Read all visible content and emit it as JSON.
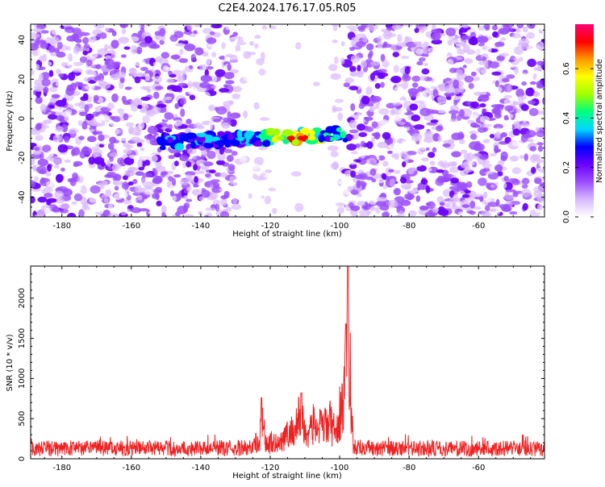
{
  "title": "C2E4.2024.176.17.05.R05",
  "chart_data": [
    {
      "type": "heatmap",
      "xlabel": "Height of straight line (km)",
      "ylabel": "Frequency (Hz)",
      "xlim": [
        -189,
        -41
      ],
      "ylim": [
        -50,
        48
      ],
      "xticks": [
        -180,
        -160,
        -140,
        -120,
        -100,
        -80,
        -60
      ],
      "yticks": [
        -40,
        -20,
        0,
        20,
        40
      ],
      "colorbar": {
        "label": "Normalized spectral amplitude",
        "range": [
          0.0,
          0.78
        ],
        "ticks": [
          0.0,
          0.2,
          0.4,
          0.6
        ],
        "colormap": [
          "#ffffff",
          "#d9b8ff",
          "#9b4dff",
          "#6a00ff",
          "#0000ff",
          "#00d8ff",
          "#00ff80",
          "#a0ff00",
          "#ffff00",
          "#ff9900",
          "#ff0000",
          "#ff0077"
        ]
      },
      "features": {
        "background_noise_amplitude": [
          0.0,
          0.2
        ],
        "gap_low_amplitude_x": [
          -130,
          -98
        ],
        "signal_band_frequency_hz": -10,
        "signal_band_x": [
          -152,
          -98
        ],
        "peak": {
          "x": -112,
          "y": -10,
          "amplitude": 0.75
        }
      }
    },
    {
      "type": "line",
      "xlabel": "Height of straight line (km)",
      "ylabel": "SNR (10 * v/v)",
      "xlim": [
        -189,
        -41
      ],
      "ylim": [
        0,
        2400
      ],
      "xticks": [
        -180,
        -160,
        -140,
        -120,
        -100,
        -80,
        -60
      ],
      "yticks": [
        0,
        500,
        1000,
        1500,
        2000
      ],
      "series": [
        {
          "color": "#ee2222",
          "baseline_level": 150,
          "x": [
            -189,
            -140,
            -126,
            -123,
            -122.5,
            -121,
            -117,
            -113,
            -111,
            -110,
            -108,
            -105,
            -103,
            -101,
            -100,
            -98.5,
            -98,
            -97.6,
            -97,
            -96,
            -94,
            -90,
            -41
          ],
          "y": [
            150,
            150,
            160,
            300,
            760,
            200,
            330,
            520,
            820,
            420,
            600,
            540,
            660,
            450,
            780,
            1200,
            1680,
            2400,
            1500,
            150,
            200,
            150,
            150
          ]
        }
      ]
    }
  ]
}
